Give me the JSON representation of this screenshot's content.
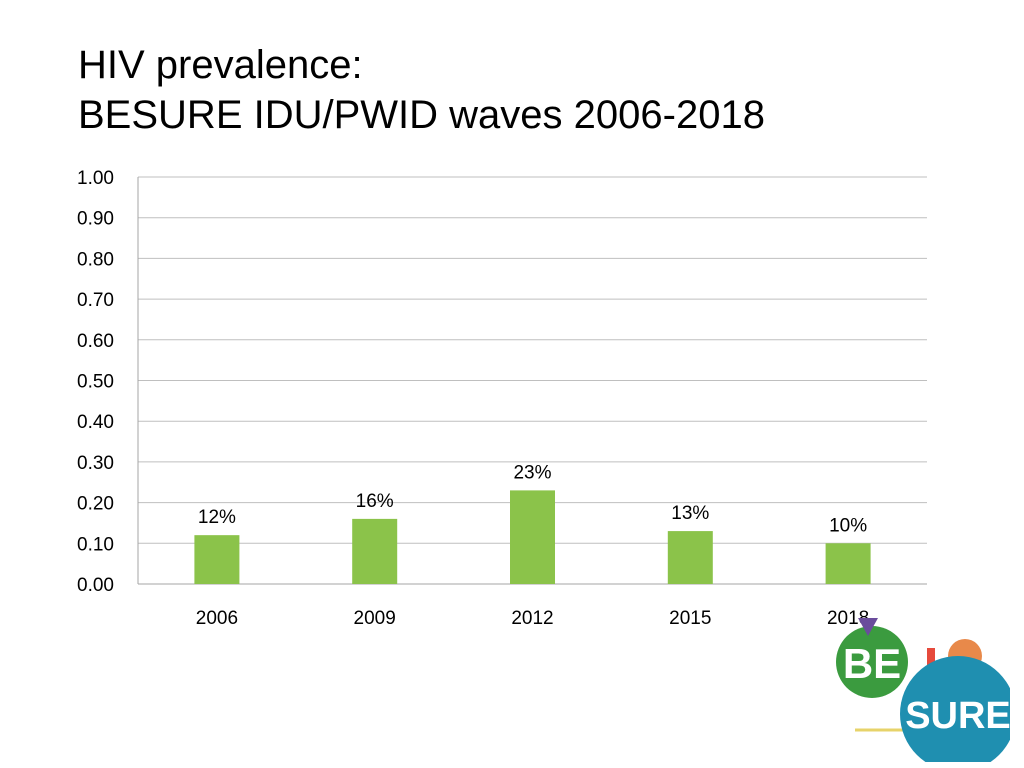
{
  "title_line1": "HIV prevalence:",
  "title_line2": "BESURE IDU/PWID waves 2006-2018",
  "colors": {
    "bar": "#8bc34a",
    "grid": "#bfbfbf",
    "axis": "#a6a6a6"
  },
  "logo": {
    "be_text": "BE",
    "sure_text": "SURE",
    "colors": {
      "be_circle": "#3b9b3f",
      "sure_circle": "#1f8fb0",
      "dot": "#e8894a",
      "bar": "#e64a3c",
      "line": "#e7d36a",
      "triangle": "#6a4c9c"
    }
  },
  "chart_data": {
    "type": "bar",
    "categories": [
      "2006",
      "2009",
      "2012",
      "2015",
      "2018"
    ],
    "values": [
      0.12,
      0.16,
      0.23,
      0.13,
      0.1
    ],
    "data_labels": [
      "12%",
      "16%",
      "23%",
      "13%",
      "10%"
    ],
    "y_ticks": [
      "0.00",
      "0.10",
      "0.20",
      "0.30",
      "0.40",
      "0.50",
      "0.60",
      "0.70",
      "0.80",
      "0.90",
      "1.00"
    ],
    "ylim": [
      0,
      1
    ],
    "grid": true,
    "legend": "none"
  }
}
